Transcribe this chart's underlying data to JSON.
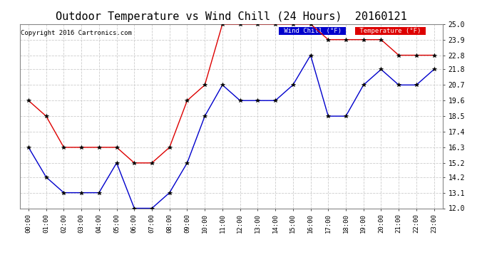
{
  "title": "Outdoor Temperature vs Wind Chill (24 Hours)  20160121",
  "copyright": "Copyright 2016 Cartronics.com",
  "hours": [
    "00:00",
    "01:00",
    "02:00",
    "03:00",
    "04:00",
    "05:00",
    "06:00",
    "07:00",
    "08:00",
    "09:00",
    "10:00",
    "11:00",
    "12:00",
    "13:00",
    "14:00",
    "15:00",
    "16:00",
    "17:00",
    "18:00",
    "19:00",
    "20:00",
    "21:00",
    "22:00",
    "23:00"
  ],
  "temperature": [
    19.6,
    18.5,
    16.3,
    16.3,
    16.3,
    16.3,
    15.2,
    15.2,
    16.3,
    19.6,
    20.7,
    25.0,
    25.0,
    25.0,
    25.0,
    25.0,
    25.0,
    23.9,
    23.9,
    23.9,
    23.9,
    22.8,
    22.8,
    22.8
  ],
  "wind_chill": [
    16.3,
    14.2,
    13.1,
    13.1,
    13.1,
    15.2,
    12.0,
    12.0,
    13.1,
    15.2,
    18.5,
    20.7,
    19.6,
    19.6,
    19.6,
    20.7,
    22.8,
    18.5,
    18.5,
    20.7,
    21.8,
    20.7,
    20.7,
    21.8
  ],
  "temp_color": "#dd0000",
  "wind_color": "#0000cc",
  "ylim_min": 12.0,
  "ylim_max": 25.0,
  "yticks": [
    12.0,
    13.1,
    14.2,
    15.2,
    16.3,
    17.4,
    18.5,
    19.6,
    20.7,
    21.8,
    22.8,
    23.9,
    25.0
  ],
  "bg_color": "#ffffff",
  "plot_bg_color": "#ffffff",
  "grid_color": "#cccccc",
  "title_fontsize": 11,
  "legend_wind_bg": "#0000cc",
  "legend_temp_bg": "#dd0000"
}
